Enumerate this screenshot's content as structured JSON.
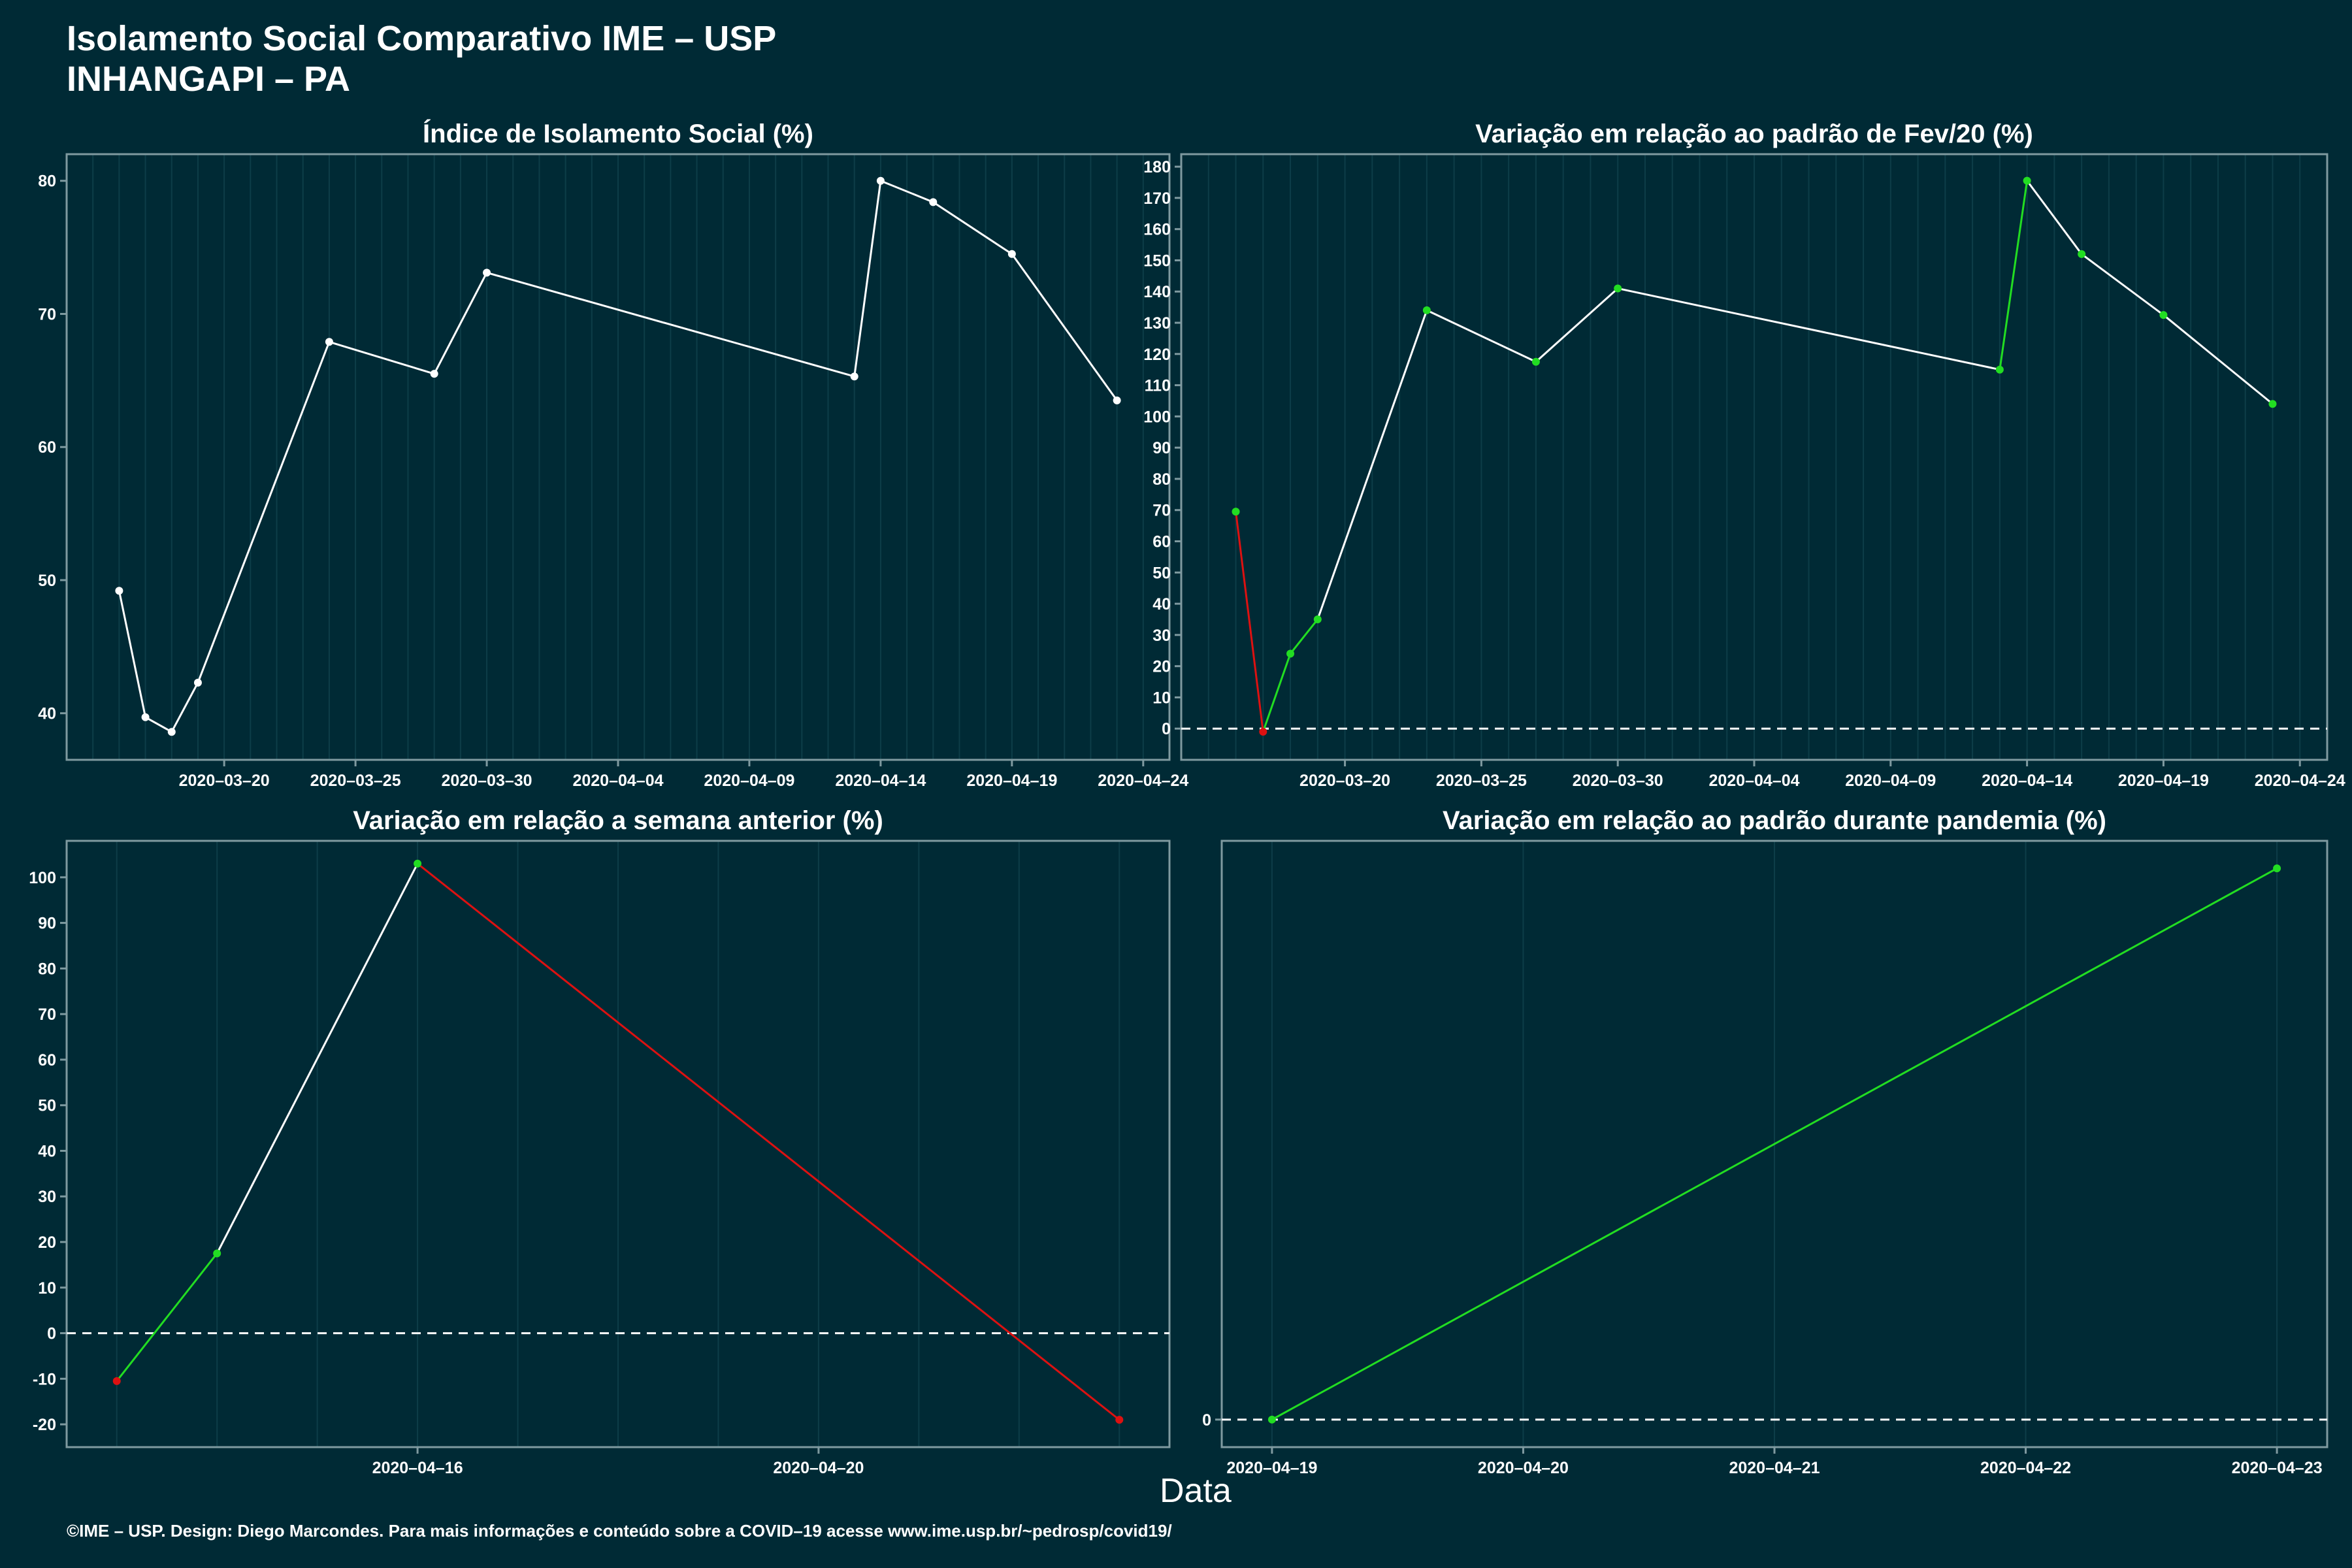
{
  "header": {
    "title": "Isolamento Social Comparativo IME – USP",
    "subtitle": "INHANGAPI – PA"
  },
  "xlabel": "Data",
  "footer": "©IME – USP. Design: Diego Marcondes. Para mais informações e conteúdo sobre a COVID–19 acesse www.ime.usp.br/~pedrosp/covid19/",
  "colors": {
    "background": "#002a35",
    "line": "#ffffff",
    "positive": "#22dd22",
    "negative": "#dd1111",
    "panel_border": "#7f9aa0",
    "grid": "#0d3d48"
  },
  "chart_data": [
    {
      "type": "line",
      "title": "Índice de Isolamento Social (%)",
      "x": [
        "2020-03-16",
        "2020-03-17",
        "2020-03-18",
        "2020-03-19",
        "2020-03-24",
        "2020-03-28",
        "2020-03-30",
        "2020-04-13",
        "2020-04-14",
        "2020-04-16",
        "2020-04-19",
        "2020-04-23"
      ],
      "y": [
        49.2,
        39.7,
        38.6,
        42.3,
        67.9,
        65.5,
        73.1,
        65.3,
        80.0,
        78.4,
        74.5,
        63.5
      ],
      "xlim": [
        "2020-03-14",
        "2020-04-25"
      ],
      "ylim": [
        36.5,
        82
      ],
      "yticks": [
        40,
        50,
        60,
        70,
        80
      ],
      "xticks": [
        "2020-03-20",
        "2020-03-25",
        "2020-03-30",
        "2020-04-04",
        "2020-04-09",
        "2020-04-14",
        "2020-04-19",
        "2020-04-24"
      ],
      "point_color": "white",
      "zero_line": false
    },
    {
      "type": "line",
      "title": "Variação em relação ao padrão de Fev/20 (%)",
      "x": [
        "2020-03-16",
        "2020-03-17",
        "2020-03-18",
        "2020-03-19",
        "2020-03-23",
        "2020-03-27",
        "2020-03-30",
        "2020-04-13",
        "2020-04-14",
        "2020-04-16",
        "2020-04-19",
        "2020-04-23"
      ],
      "y": [
        69.5,
        -1,
        24,
        35,
        134,
        117.5,
        141,
        115,
        175.5,
        152,
        132.5,
        104
      ],
      "xlim": [
        "2020-03-14",
        "2020-04-25"
      ],
      "ylim": [
        -10,
        184
      ],
      "yticks": [
        0,
        10,
        20,
        30,
        40,
        50,
        60,
        70,
        80,
        90,
        100,
        110,
        120,
        130,
        140,
        150,
        160,
        170,
        180
      ],
      "xticks": [
        "2020-03-20",
        "2020-03-25",
        "2020-03-30",
        "2020-04-04",
        "2020-04-09",
        "2020-04-14",
        "2020-04-19",
        "2020-04-24"
      ],
      "point_color": "signed",
      "zero_line": true
    },
    {
      "type": "line",
      "title": "Variação em relação a semana anterior (%)",
      "x": [
        "2020-04-13",
        "2020-04-14",
        "2020-04-16",
        "2020-04-23"
      ],
      "y": [
        -10.5,
        17.5,
        103,
        -19
      ],
      "xlim": [
        "2020-04-12.5",
        "2020-04-23.5"
      ],
      "ylim": [
        -25,
        108
      ],
      "yticks": [
        -20,
        -10,
        0,
        10,
        20,
        30,
        40,
        50,
        60,
        70,
        80,
        90,
        100
      ],
      "xticks": [
        "2020-04-16",
        "2020-04-20"
      ],
      "point_color": "signed",
      "zero_line": true
    },
    {
      "type": "line",
      "title": "Variação em relação ao padrão durante pandemia (%)",
      "x": [
        "2020-04-19",
        "2020-04-23"
      ],
      "y": [
        0,
        100
      ],
      "xlim": [
        "2020-04-18.8",
        "2020-04-23.2"
      ],
      "ylim": [
        -5,
        105
      ],
      "yticks": [
        0
      ],
      "xticks": [
        "2020-04-19",
        "2020-04-20",
        "2020-04-21",
        "2020-04-22",
        "2020-04-23"
      ],
      "point_color": "signed",
      "zero_line": true
    }
  ]
}
